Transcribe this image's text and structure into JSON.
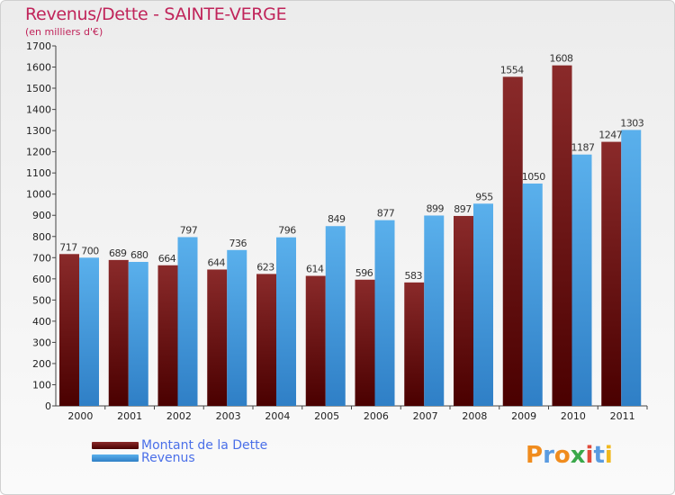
{
  "header": {
    "title": "Revenus/Dette - SAINTE-VERGE",
    "subtitle": "(en milliers d'€)"
  },
  "colors": {
    "title": "#c0245a",
    "dette_top": "#8a2a2a",
    "dette_bottom": "#4a0000",
    "revenus_top": "#5ab0ec",
    "revenus_bottom": "#2f7fc6",
    "legend_text": "#4a6fe8"
  },
  "logo": {
    "letters": [
      "P",
      "r",
      "o",
      "x",
      "i",
      "t",
      "i"
    ],
    "colors": [
      "#f08c1e",
      "#5a9be0",
      "#f08c1e",
      "#3aa84a",
      "#e04a3a",
      "#5a9be0",
      "#f0b81e"
    ]
  },
  "chart_data": {
    "type": "bar",
    "title": "Revenus/Dette - SAINTE-VERGE",
    "subtitle": "(en milliers d'€)",
    "categories": [
      "2000",
      "2001",
      "2002",
      "2003",
      "2004",
      "2005",
      "2006",
      "2007",
      "2008",
      "2009",
      "2010",
      "2011"
    ],
    "series": [
      {
        "name": "Montant de la Dette",
        "values": [
          717,
          689,
          664,
          644,
          623,
          614,
          596,
          583,
          897,
          1554,
          1608,
          1247
        ]
      },
      {
        "name": "Revenus",
        "values": [
          700,
          680,
          797,
          736,
          796,
          849,
          877,
          899,
          955,
          1050,
          1187,
          1303
        ]
      }
    ],
    "ylim": [
      0,
      1700
    ],
    "yticks": [
      0,
      100,
      200,
      300,
      400,
      500,
      600,
      700,
      800,
      900,
      1000,
      1100,
      1200,
      1300,
      1400,
      1500,
      1600,
      1700
    ],
    "grid": false,
    "legend": "bottom-left",
    "data_labels": true
  }
}
